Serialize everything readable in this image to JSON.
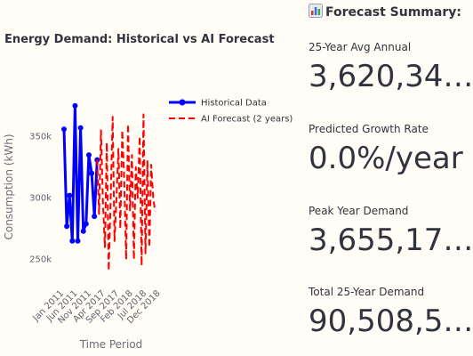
{
  "chart_data": {
    "type": "line",
    "title": "Energy Demand: Historical vs AI Forecast",
    "xlabel": "Time Period",
    "ylabel": "Consumption (kWh)",
    "y_ticks": [
      {
        "value": 350000,
        "label": "350k"
      },
      {
        "value": 300000,
        "label": "300k"
      },
      {
        "value": 250000,
        "label": "250k"
      }
    ],
    "ylim": [
      233000,
      385000
    ],
    "x_ticks": [
      "Jan 2011",
      "Jun 2011",
      "Nov 2011",
      "Apr 2017",
      "Sep 2017",
      "Feb 2018",
      "Jul 2018",
      "Dec 2018"
    ],
    "x_tick_positions": [
      0,
      5,
      10,
      15,
      20,
      25,
      30,
      35
    ],
    "xlim": [
      0,
      38
    ],
    "legend_position": "top-right",
    "series": [
      {
        "name": "Historical Data",
        "style": "solid-markers",
        "color": "#0000ff",
        "x": [
          0,
          1,
          2,
          3,
          4,
          5,
          6,
          7,
          8,
          9,
          10,
          11,
          12
        ],
        "values": [
          356000,
          277000,
          302000,
          265000,
          375000,
          265000,
          357000,
          273000,
          279000,
          335000,
          320000,
          285000,
          331000
        ]
      },
      {
        "name": "AI Forecast (2 years)",
        "style": "dashed",
        "color": "#ff0000",
        "x": [
          12,
          12.7,
          13.4,
          14.1,
          14.8,
          15.5,
          16.2,
          16.9,
          17.6,
          18.3,
          19,
          19.7,
          20.4,
          21.1,
          21.8,
          22.5,
          23.2,
          23.9,
          24.6,
          25.3,
          26,
          26.7,
          27.4,
          28.1,
          28.8,
          29.5,
          30.2,
          30.9,
          31.6,
          32.3,
          33
        ],
        "values": [
          331000,
          287000,
          355000,
          296000,
          260000,
          345000,
          241000,
          300000,
          366000,
          265000,
          300000,
          340000,
          275000,
          355000,
          315000,
          250000,
          360000,
          290000,
          335000,
          250000,
          325000,
          300000,
          350000,
          245000,
          368000,
          255000,
          330000,
          260000,
          327000,
          300000,
          289000
        ]
      }
    ]
  },
  "summary": {
    "icon": "bar-chart-icon",
    "title": "Forecast Summary:",
    "metrics": [
      {
        "label": "25-Year Avg Annual",
        "value": "3,620,34…"
      },
      {
        "label": "Predicted Growth Rate",
        "value": "0.0%/year"
      },
      {
        "label": "Peak Year Demand",
        "value": "3,655,17…"
      },
      {
        "label": "Total 25-Year Demand",
        "value": "90,508,5…"
      }
    ]
  }
}
